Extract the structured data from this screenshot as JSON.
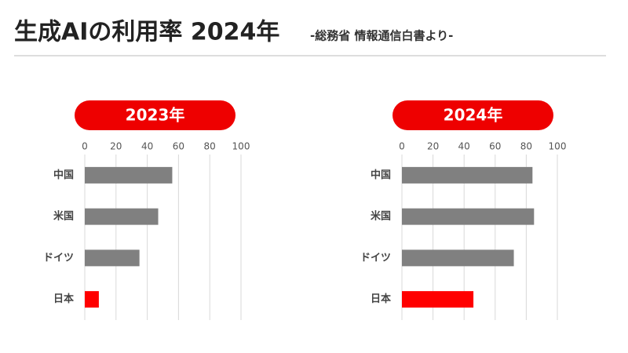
{
  "header": {
    "title": "生成AIの利用率 2024年",
    "subtitle": "-総務省 情報通信白書より-"
  },
  "chart_data": [
    {
      "type": "bar",
      "horizontal": true,
      "title": "2023年",
      "categories": [
        "中国",
        "米国",
        "ドイツ",
        "日本"
      ],
      "values": [
        56,
        47,
        35,
        9
      ],
      "colors": [
        "#808080",
        "#808080",
        "#808080",
        "#ff0000"
      ],
      "xlim": [
        0,
        100
      ],
      "xticks": [
        0,
        20,
        40,
        60,
        80,
        100
      ],
      "grid": true
    },
    {
      "type": "bar",
      "horizontal": true,
      "title": "2024年",
      "categories": [
        "中国",
        "米国",
        "ドイツ",
        "日本"
      ],
      "values": [
        84,
        85,
        72,
        46
      ],
      "colors": [
        "#808080",
        "#808080",
        "#808080",
        "#ff0000"
      ],
      "xlim": [
        0,
        100
      ],
      "xticks": [
        0,
        20,
        40,
        60,
        80,
        100
      ],
      "grid": true
    }
  ]
}
